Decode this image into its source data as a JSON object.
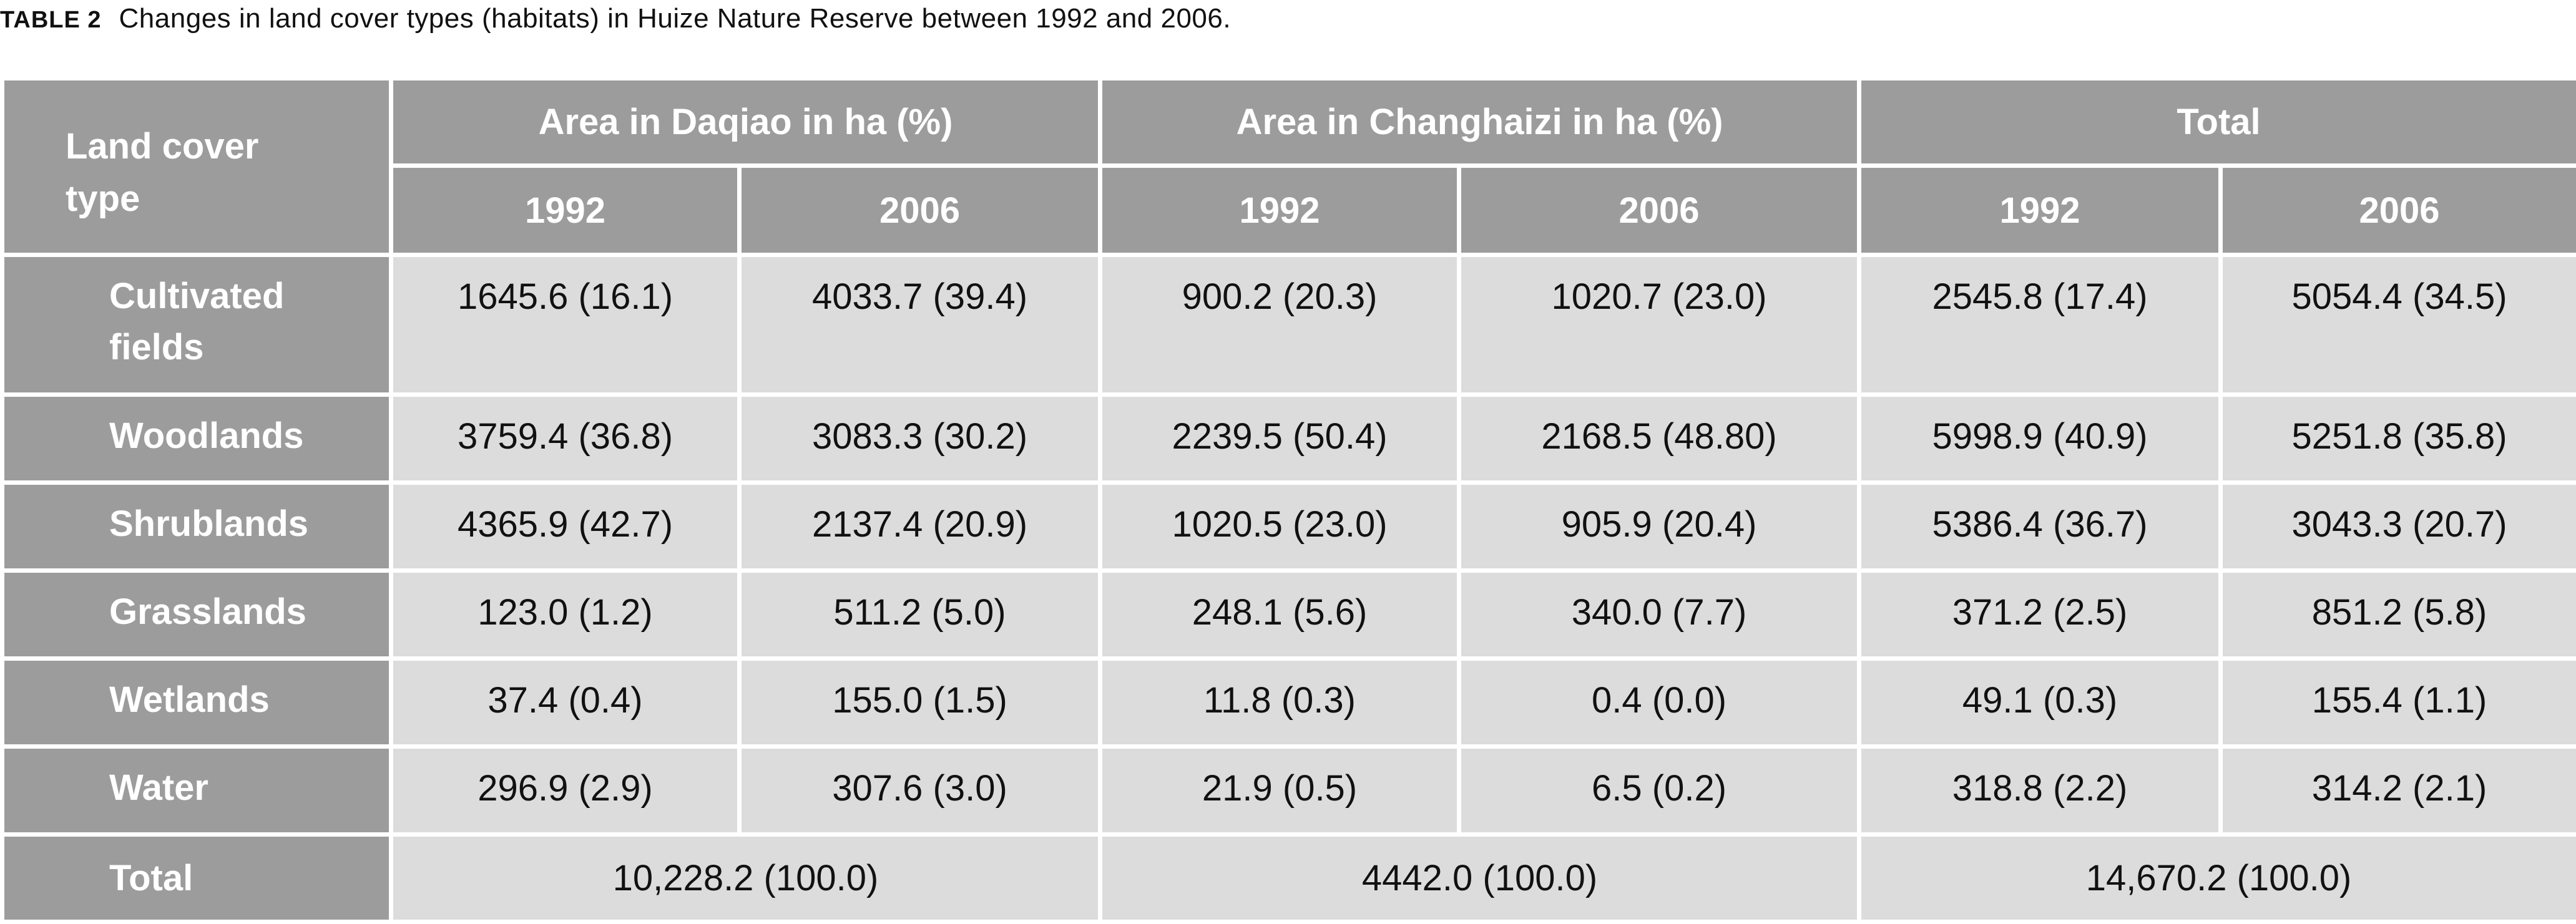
{
  "caption": {
    "label": "TABLE 2",
    "text": "Changes in land cover types (habitats) in Huize Nature Reserve between 1992 and 2006."
  },
  "header": {
    "corner_line1": "Land cover",
    "corner_line2": "type",
    "groups": [
      "Area in Daqiao in ha (%)",
      "Area in Changhaizi in ha (%)",
      "Total"
    ],
    "years": [
      "1992",
      "2006",
      "1992",
      "2006",
      "1992",
      "2006"
    ]
  },
  "rows": [
    {
      "type_line1": "Cultivated",
      "type_line2": "fields",
      "values": [
        "1645.6 (16.1)",
        "4033.7 (39.4)",
        "900.2 (20.3)",
        "1020.7 (23.0)",
        "2545.8 (17.4)",
        "5054.4 (34.5)"
      ]
    },
    {
      "type_line1": "Woodlands",
      "type_line2": "",
      "values": [
        "3759.4 (36.8)",
        "3083.3 (30.2)",
        "2239.5 (50.4)",
        "2168.5 (48.80)",
        "5998.9 (40.9)",
        "5251.8 (35.8)"
      ]
    },
    {
      "type_line1": "Shrublands",
      "type_line2": "",
      "values": [
        "4365.9 (42.7)",
        "2137.4 (20.9)",
        "1020.5 (23.0)",
        "905.9 (20.4)",
        "5386.4 (36.7)",
        "3043.3 (20.7)"
      ]
    },
    {
      "type_line1": "Grasslands",
      "type_line2": "",
      "values": [
        "123.0 (1.2)",
        "511.2 (5.0)",
        "248.1 (5.6)",
        "340.0 (7.7)",
        "371.2 (2.5)",
        "851.2 (5.8)"
      ]
    },
    {
      "type_line1": "Wetlands",
      "type_line2": "",
      "values": [
        "37.4 (0.4)",
        "155.0 (1.5)",
        "11.8 (0.3)",
        "0.4 (0.0)",
        "49.1 (0.3)",
        "155.4 (1.1)"
      ]
    },
    {
      "type_line1": "Water",
      "type_line2": "",
      "values": [
        "296.9 (2.9)",
        "307.6 (3.0)",
        "21.9 (0.5)",
        "6.5 (0.2)",
        "318.8 (2.2)",
        "314.2 (2.1)"
      ]
    }
  ],
  "total_row": {
    "label": "Total",
    "values": [
      "10,228.2 (100.0)",
      "4442.0 (100.0)",
      "14,670.2 (100.0)"
    ]
  }
}
